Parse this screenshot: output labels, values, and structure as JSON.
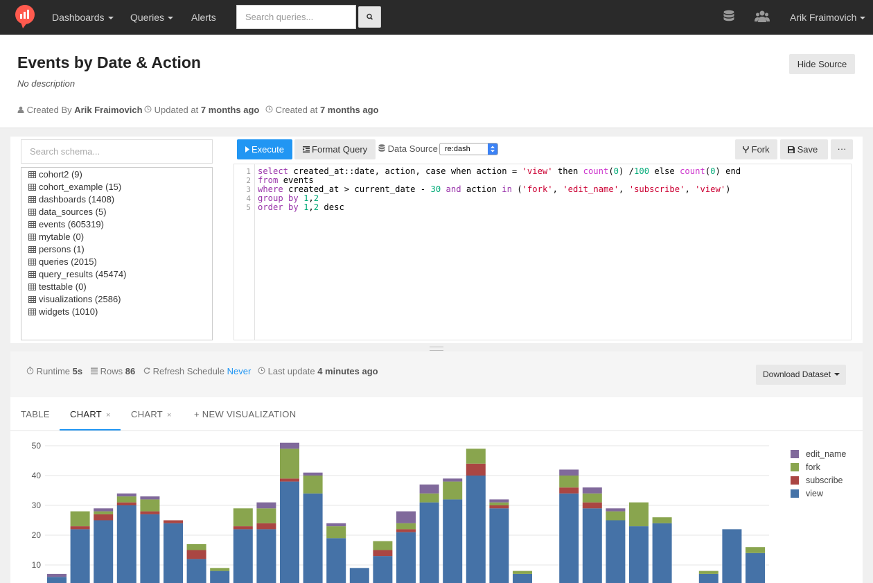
{
  "navbar": {
    "items": [
      {
        "label": "Dashboards",
        "dropdown": true
      },
      {
        "label": "Queries",
        "dropdown": true
      },
      {
        "label": "Alerts",
        "dropdown": false
      }
    ],
    "search_placeholder": "Search queries...",
    "user_name": "Arik Fraimovich",
    "brand_color": "#ff5a4e"
  },
  "header": {
    "title": "Events by Date & Action",
    "description": "No description",
    "created_by_label": "Created By",
    "created_by": "Arik Fraimovich",
    "updated_label": "Updated at",
    "updated": "7 months ago",
    "created_label": "Created at",
    "created": "7 months ago",
    "hide_source_label": "Hide Source"
  },
  "schema": {
    "search_placeholder": "Search schema...",
    "tables": [
      "cohort2 (9)",
      "cohort_example (15)",
      "dashboards (1408)",
      "data_sources (5)",
      "events (605319)",
      "mytable (0)",
      "persons (1)",
      "queries (2015)",
      "query_results (45474)",
      "testtable (0)",
      "visualizations (2586)",
      "widgets (1010)"
    ]
  },
  "toolbar": {
    "execute_label": "Execute",
    "format_label": "Format Query",
    "data_source_label": "Data Source",
    "data_source_value": "re:dash",
    "fork_label": "Fork",
    "save_label": "Save",
    "more_label": "···"
  },
  "editor": {
    "lines": [
      "select created_at::date, action, case when action = 'view' then count(0) /100 else count(0) end",
      "from events",
      "where created_at > current_date - 30 and action in ('fork', 'edit_name', 'subscribe', 'view')",
      "group by 1,2",
      "order by 1,2 desc"
    ]
  },
  "results": {
    "runtime_label": "Runtime",
    "runtime": "5s",
    "rows_label": "Rows",
    "rows": "86",
    "refresh_label": "Refresh Schedule",
    "refresh": "Never",
    "last_update_label": "Last update",
    "last_update": "4 minutes ago",
    "download_label": "Download Dataset"
  },
  "tabs": [
    {
      "label": "TABLE",
      "closable": false,
      "active": false
    },
    {
      "label": "CHART",
      "closable": true,
      "active": true
    },
    {
      "label": "CHART",
      "closable": true,
      "active": false
    },
    {
      "label": "+ NEW VISUALIZATION",
      "closable": false,
      "active": false
    }
  ],
  "chart_data": {
    "type": "bar",
    "stacked": true,
    "y_ticks": [
      10,
      20,
      30,
      40,
      50
    ],
    "ylim": [
      0,
      52
    ],
    "legend_position": "right",
    "series": [
      {
        "name": "view",
        "color": "#4572a7",
        "values": [
          6,
          22,
          25,
          30,
          27,
          24,
          12,
          8,
          22,
          22,
          38,
          34,
          19,
          9,
          13,
          21,
          31,
          32,
          40,
          29,
          7,
          0,
          34,
          29,
          25,
          23,
          24,
          0,
          7,
          22,
          14
        ]
      },
      {
        "name": "subscribe",
        "color": "#aa4643",
        "values": [
          0,
          1,
          2,
          1,
          1,
          1,
          3,
          0,
          1,
          2,
          1,
          0,
          0,
          0,
          2,
          1,
          0,
          0,
          4,
          1,
          0,
          0,
          2,
          2,
          0,
          0,
          0,
          0,
          0,
          0,
          0
        ]
      },
      {
        "name": "fork",
        "color": "#89a54e",
        "values": [
          0,
          5,
          1,
          2,
          4,
          0,
          2,
          1,
          6,
          5,
          10,
          6,
          4,
          0,
          3,
          2,
          3,
          6,
          5,
          1,
          1,
          0,
          4,
          3,
          3,
          8,
          2,
          0,
          1,
          0,
          2
        ]
      },
      {
        "name": "edit_name",
        "color": "#80699b",
        "values": [
          1,
          0,
          1,
          1,
          1,
          0,
          0,
          0,
          0,
          2,
          2,
          1,
          1,
          0,
          0,
          4,
          3,
          1,
          0,
          1,
          0,
          0,
          2,
          2,
          1,
          0,
          0,
          0,
          0,
          0,
          0
        ]
      }
    ]
  }
}
